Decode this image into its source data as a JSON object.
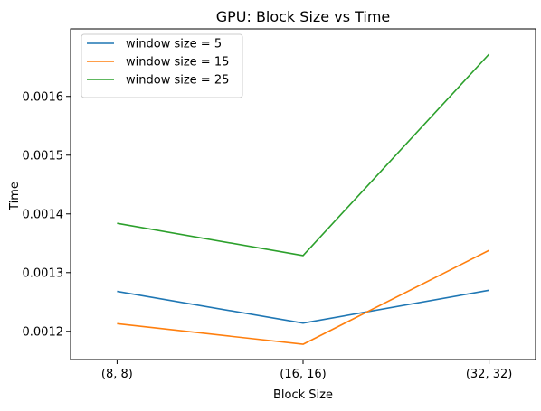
{
  "chart_data": {
    "type": "line",
    "title": "GPU: Block Size vs Time",
    "xlabel": "Block Size",
    "ylabel": "Time",
    "categories": [
      "(8, 8)",
      "(16, 16)",
      "(32, 32)"
    ],
    "ylim": [
      0.001152,
      0.001715
    ],
    "yticks": [
      0.0012,
      0.0013,
      0.0014,
      0.0015,
      0.0016
    ],
    "ytick_labels": [
      "0.0012",
      "0.0013",
      "0.0014",
      "0.0015",
      "0.0016"
    ],
    "grid": false,
    "legend_position": "upper-left",
    "series": [
      {
        "name": "window size = 5",
        "color": "#1f77b4",
        "values": [
          0.001268,
          0.001214,
          0.00127
        ]
      },
      {
        "name": "window size = 15",
        "color": "#ff7f0e",
        "values": [
          0.001213,
          0.001178,
          0.001338
        ]
      },
      {
        "name": "window size = 25",
        "color": "#2ca02c",
        "values": [
          0.001384,
          0.001329,
          0.001672
        ]
      }
    ]
  }
}
